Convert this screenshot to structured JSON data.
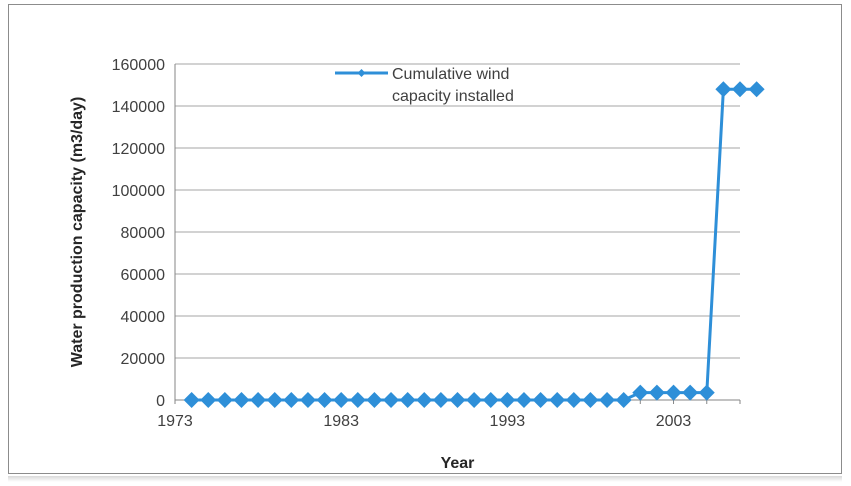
{
  "chart_data": {
    "type": "line",
    "title": "",
    "xlabel": "Year",
    "ylabel": "Water production capacity (m3/day)",
    "xlim": [
      1973,
      2007
    ],
    "ylim": [
      0,
      160000
    ],
    "x_ticks": [
      1973,
      1983,
      1993,
      2003
    ],
    "y_ticks": [
      0,
      20000,
      40000,
      60000,
      80000,
      100000,
      120000,
      140000,
      160000
    ],
    "grid": true,
    "legend_position": "top-center",
    "colors": {
      "series": "#2e8fd8",
      "grid": "#a6a6a6",
      "axis": "#868686"
    },
    "series": [
      {
        "name": "Cumulative wind capacity installed",
        "x": [
          1974,
          1975,
          1976,
          1977,
          1978,
          1979,
          1980,
          1981,
          1982,
          1983,
          1984,
          1985,
          1986,
          1987,
          1988,
          1989,
          1990,
          1991,
          1992,
          1993,
          1994,
          1995,
          1996,
          1997,
          1998,
          1999,
          2000,
          2001,
          2002,
          2003,
          2004,
          2005,
          2006,
          2007,
          2008
        ],
        "values": [
          0,
          0,
          0,
          0,
          0,
          0,
          0,
          0,
          0,
          0,
          0,
          0,
          0,
          0,
          0,
          0,
          0,
          0,
          0,
          0,
          0,
          0,
          0,
          0,
          0,
          0,
          0,
          3500,
          3500,
          3500,
          3500,
          3500,
          148000,
          148000,
          148000
        ]
      }
    ]
  }
}
